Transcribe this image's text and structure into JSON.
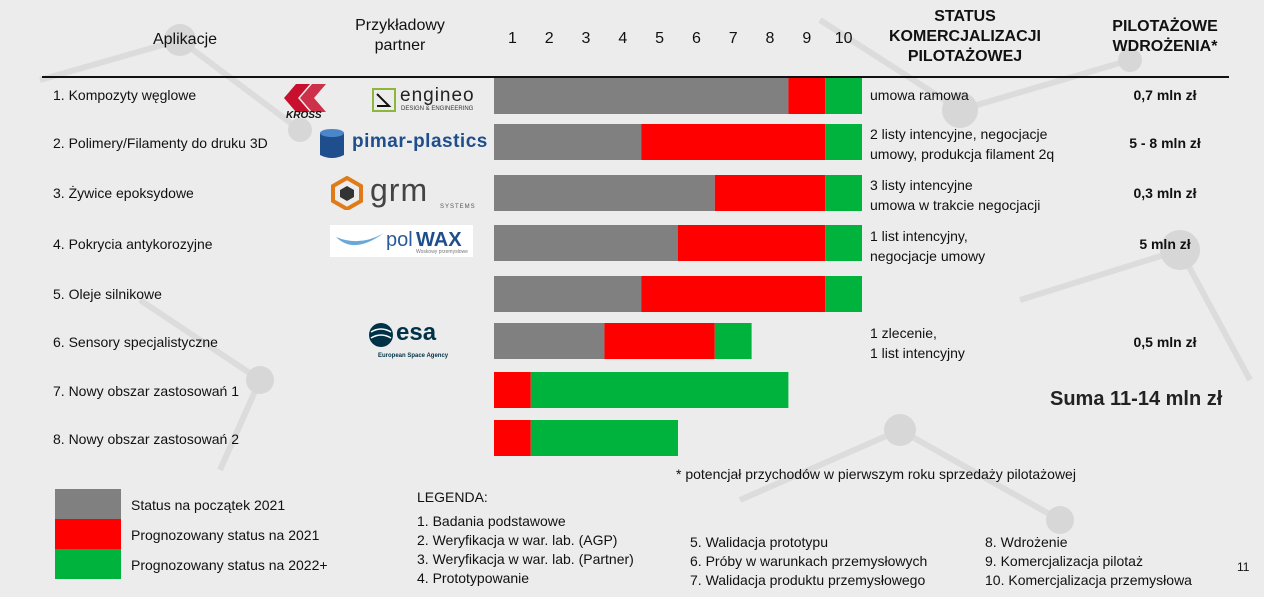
{
  "header": {
    "col_app": "Aplikacje",
    "col_partner_line1": "Przykładowy",
    "col_partner_line2": "partner",
    "trl_levels": [
      "1",
      "2",
      "3",
      "4",
      "5",
      "6",
      "7",
      "8",
      "9",
      "10"
    ],
    "col_status_line1": "STATUS",
    "col_status_line2": "KOMERCJALIZACJI",
    "col_status_line3": "PILOTAŻOWEJ",
    "col_pilot_line1": "PILOTAŻOWE",
    "col_pilot_line2": "WDROŻENIA*"
  },
  "rows": [
    {
      "name": "1. Kompozyty węglowe",
      "status": [
        "umowa ramowa"
      ],
      "pilot": "0,7 mln zł"
    },
    {
      "name": "2. Polimery/Filamenty do druku 3D",
      "status": [
        "2 listy intencyjne, negocjacje",
        "umowy, produkcja filament 2q"
      ],
      "pilot": "5 - 8 mln zł"
    },
    {
      "name": "3. Żywice epoksydowe",
      "status": [
        "3 listy intencyjne",
        "umowa w trakcie negocjacji"
      ],
      "pilot": "0,3 mln zł"
    },
    {
      "name": "4. Pokrycia antykorozyjne",
      "status": [
        "1 list intencyjny,",
        "negocjacje umowy"
      ],
      "pilot": "5 mln zł"
    },
    {
      "name": "5. Oleje silnikowe",
      "status": [],
      "pilot": ""
    },
    {
      "name": "6. Sensory specjalistyczne",
      "status": [
        "1 zlecenie,",
        "1 list intencyjny"
      ],
      "pilot": "0,5 mln zł"
    },
    {
      "name": "7. Nowy obszar zastosowań 1",
      "status": [],
      "pilot": ""
    },
    {
      "name": "8. Nowy obszar zastosowań 2",
      "status": [],
      "pilot": ""
    }
  ],
  "partners": {
    "kross": "KROSS",
    "engineo": "engineo",
    "engineo_sub": "DESIGN & ENGINEERING",
    "pimar": "pimar-plastics",
    "grm": "grm",
    "grm_sub": "SYSTEMS",
    "polwax_a": "pol",
    "polwax_b": "WAX",
    "polwax_sub": "Woskowy przemysłowe",
    "esa": "esa",
    "esa_sub": "European Space Agency"
  },
  "sum_text": "Suma 11-14 mln zł",
  "footnote": "* potencjał przychodów w pierwszym roku sprzedaży pilotażowej",
  "colors": {
    "gray": "#808080",
    "red": "#ff0000",
    "green": "#00b33c"
  },
  "swatches": [
    {
      "label": "Status  na początek 2021",
      "color": "#808080"
    },
    {
      "label": "Prognozowany status na 2021",
      "color": "#ff0000"
    },
    {
      "label": "Prognozowany status na 2022+",
      "color": "#00b33c"
    }
  ],
  "legend": {
    "title": "LEGENDA:",
    "items": [
      "1. Badania podstawowe",
      "2. Weryfikacja w war. lab. (AGP)",
      "3. Weryfikacja w war. lab. (Partner)",
      "4. Prototypowanie",
      "5. Walidacja prototypu",
      "6. Próby w warunkach przemysłowych",
      "7. Walidacja produktu przemysłowego",
      "8. Wdrożenie",
      "9. Komercjalizacja pilotaż",
      "10. Komercjalizacja przemysłowa"
    ]
  },
  "page_number": "11",
  "chart_data": {
    "type": "bar",
    "orientation": "horizontal-stacked",
    "xlabel": "",
    "xlim": [
      0,
      10
    ],
    "categories": [
      "1. Kompozyty węglowe",
      "2. Polimery/Filamenty do druku 3D",
      "3. Żywice epoksydowe",
      "4. Pokrycia antykorozyjne",
      "5. Oleje silnikowe",
      "6. Sensory specjalistyczne",
      "7. Nowy obszar zastosowań 1",
      "8. Nowy obszar zastosowań 2"
    ],
    "series": [
      {
        "name": "Status  na początek 2021",
        "color": "#808080",
        "values": [
          8,
          4,
          6,
          5,
          4,
          3,
          0,
          0
        ]
      },
      {
        "name": "Prognozowany status na 2021",
        "color": "#ff0000",
        "values": [
          1,
          5,
          3,
          4,
          5,
          3,
          1,
          1
        ]
      },
      {
        "name": "Prognozowany status na 2022+",
        "color": "#00b33c",
        "values": [
          1,
          1,
          1,
          1,
          1,
          1,
          7,
          4
        ]
      }
    ],
    "tick_labels": [
      "1",
      "2",
      "3",
      "4",
      "5",
      "6",
      "7",
      "8",
      "9",
      "10"
    ]
  }
}
